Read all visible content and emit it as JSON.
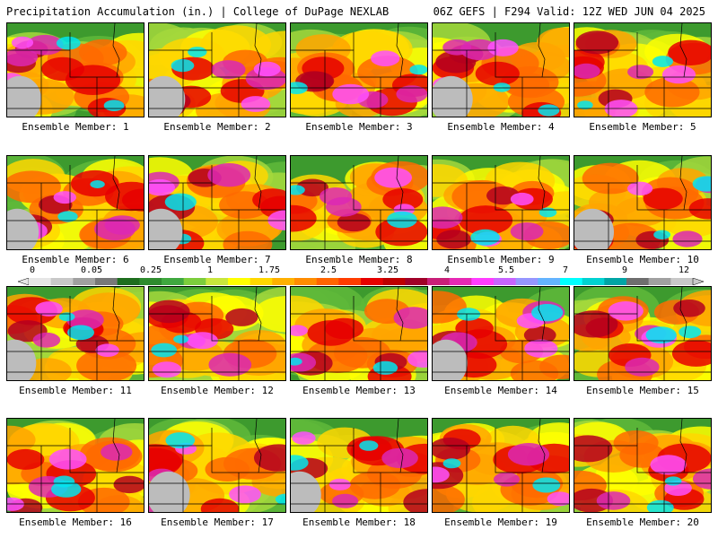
{
  "header": {
    "left_title": "Precipitation Accumulation (in.) | College of DuPage NEXLAB",
    "right_title": "06Z GEFS | F294 Valid: 12Z WED JUN 04 2025"
  },
  "panels": [
    {
      "label": "Ensemble Member: 1"
    },
    {
      "label": "Ensemble Member: 2"
    },
    {
      "label": "Ensemble Member: 3"
    },
    {
      "label": "Ensemble Member: 4"
    },
    {
      "label": "Ensemble Member: 5"
    },
    {
      "label": "Ensemble Member: 6"
    },
    {
      "label": "Ensemble Member: 7"
    },
    {
      "label": "Ensemble Member: 8"
    },
    {
      "label": "Ensemble Member: 9"
    },
    {
      "label": "Ensemble Member: 10"
    },
    {
      "label": "Ensemble Member: 11"
    },
    {
      "label": "Ensemble Member: 12"
    },
    {
      "label": "Ensemble Member: 13"
    },
    {
      "label": "Ensemble Member: 14"
    },
    {
      "label": "Ensemble Member: 15"
    },
    {
      "label": "Ensemble Member: 16"
    },
    {
      "label": "Ensemble Member: 17"
    },
    {
      "label": "Ensemble Member: 18"
    },
    {
      "label": "Ensemble Member: 19"
    },
    {
      "label": "Ensemble Member: 20"
    }
  ],
  "colorbar": {
    "tick_labels": [
      "0",
      "0.05",
      "0.25",
      "1",
      "1.75",
      "2.5",
      "3.25",
      "4",
      "5.5",
      "7",
      "9",
      "12"
    ],
    "colors": [
      "#e6e6e6",
      "#c8c8c8",
      "#a0a0a0",
      "#787878",
      "#1e6e1e",
      "#2e8b2e",
      "#3fa83f",
      "#7ccd3c",
      "#c8e63c",
      "#ffff00",
      "#ffd700",
      "#ffb000",
      "#ff8c00",
      "#ff6400",
      "#ff3c00",
      "#e60000",
      "#be0000",
      "#a00028",
      "#c81e78",
      "#e628b4",
      "#ff3cff",
      "#c864ff",
      "#9696ff",
      "#64b4ff",
      "#00ffff",
      "#00d2d2",
      "#00a5a5",
      "#6e6e6e",
      "#a0a0a0",
      "#c8c8c8"
    ]
  }
}
